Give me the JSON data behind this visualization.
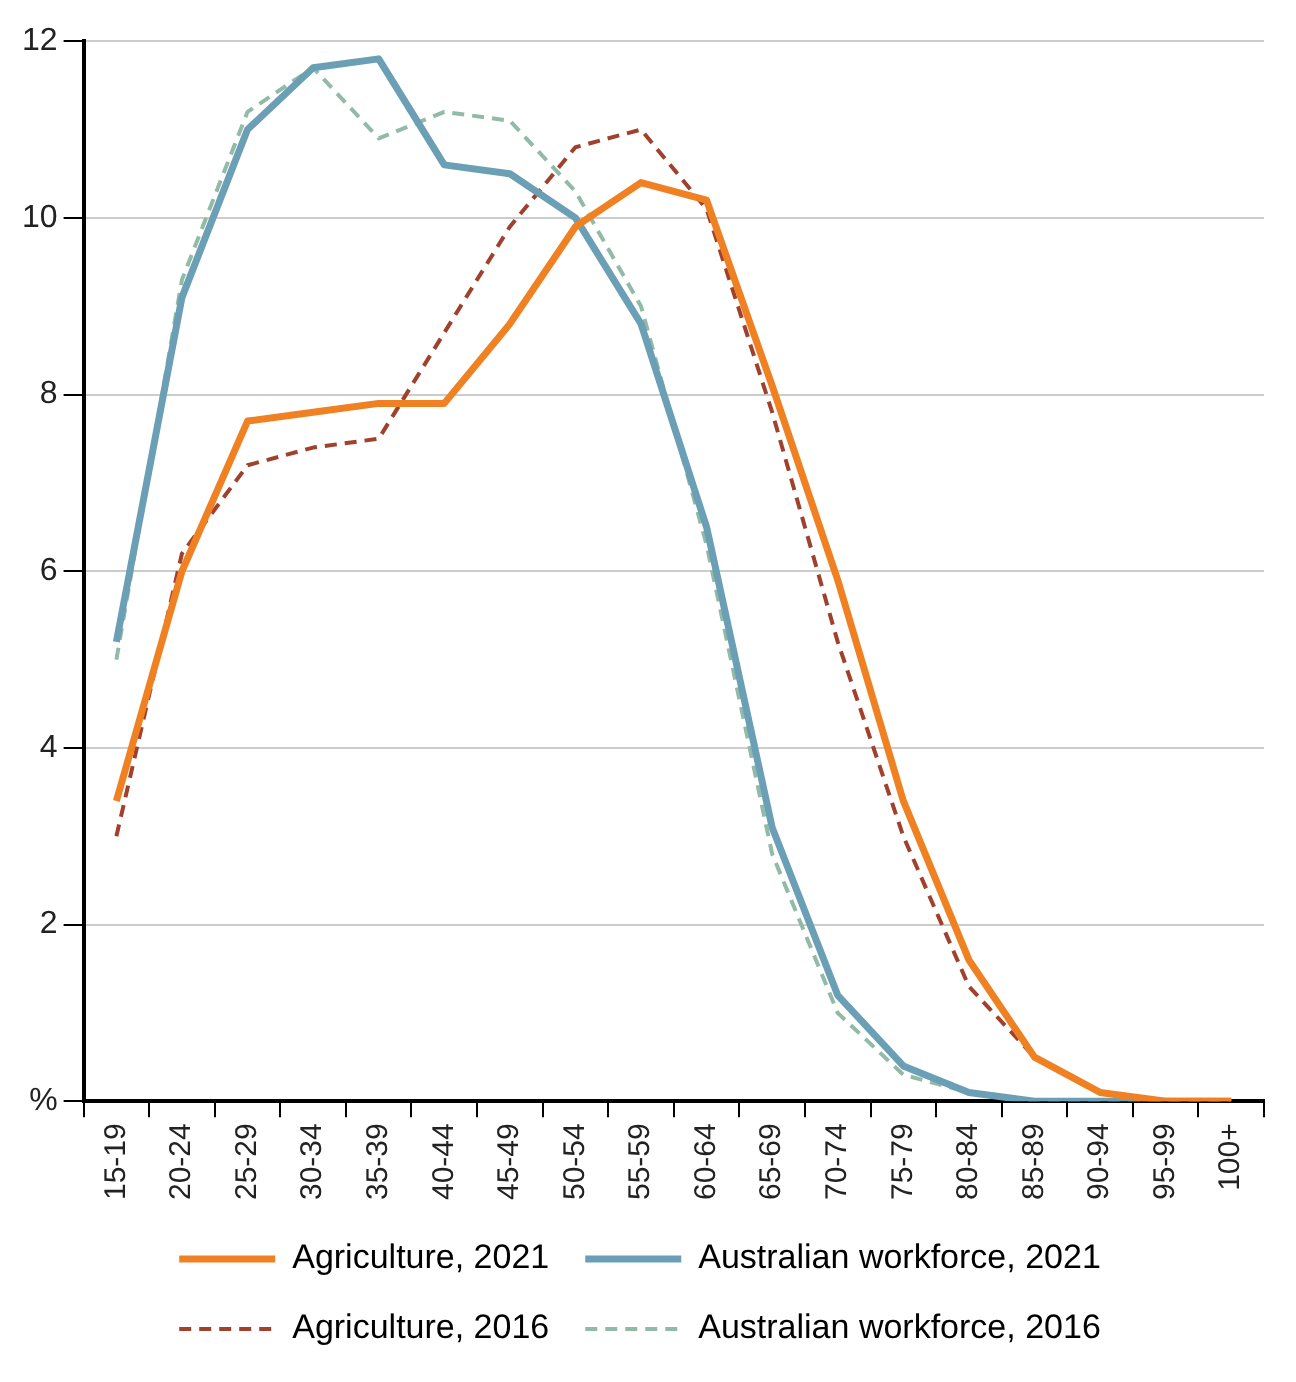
{
  "chart_data": {
    "type": "line",
    "categories": [
      "15-19",
      "20-24",
      "25-29",
      "30-34",
      "35-39",
      "40-44",
      "45-49",
      "50-54",
      "55-59",
      "60-64",
      "65-69",
      "70-74",
      "75-79",
      "80-84",
      "85-89",
      "90-94",
      "95-99",
      "100+"
    ],
    "series": [
      {
        "name": "Agriculture, 2021",
        "color": "#f08122",
        "line_style": "solid",
        "values": [
          3.4,
          6.0,
          7.7,
          7.8,
          7.9,
          7.9,
          8.8,
          9.9,
          10.4,
          10.2,
          8.1,
          5.9,
          3.4,
          1.6,
          0.5,
          0.1,
          0,
          0
        ]
      },
      {
        "name": "Australian workforce, 2021",
        "color": "#6a9fb5",
        "line_style": "solid",
        "values": [
          5.2,
          9.1,
          11.0,
          11.7,
          11.8,
          10.6,
          10.5,
          10.0,
          8.8,
          6.5,
          3.1,
          1.2,
          0.4,
          0.1,
          0,
          0,
          0,
          0
        ]
      },
      {
        "name": "Agriculture, 2016",
        "color": "#a0412d",
        "line_style": "dashed",
        "values": [
          3.0,
          6.2,
          7.2,
          7.4,
          7.5,
          8.7,
          9.9,
          10.8,
          11.0,
          10.1,
          7.8,
          5.2,
          3.0,
          1.3,
          0.5,
          0.1,
          0,
          0
        ]
      },
      {
        "name": "Australian workforce, 2016",
        "color": "#91bba6",
        "line_style": "dashed",
        "values": [
          5.0,
          9.3,
          11.2,
          11.7,
          10.9,
          11.2,
          11.1,
          10.3,
          9.0,
          6.3,
          2.8,
          1.0,
          0.3,
          0.1,
          0,
          0,
          0,
          0
        ]
      }
    ],
    "ylim": [
      0,
      12
    ],
    "yticks": [
      {
        "value": 0,
        "label": "%"
      },
      2,
      4,
      6,
      8,
      10,
      12
    ],
    "grid": "y",
    "legend": "bottom",
    "marker": "none"
  }
}
